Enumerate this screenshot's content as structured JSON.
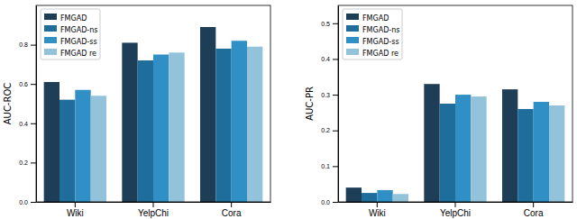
{
  "chart_data": [
    {
      "type": "bar",
      "y_label": "AUC-ROC",
      "categories": [
        "Wiki",
        "YelpChi",
        "Cora"
      ],
      "series": [
        {
          "name": "FMGAD",
          "color": "#1e3d57",
          "values": [
            0.61,
            0.81,
            0.89
          ]
        },
        {
          "name": "FMGAD-ns",
          "color": "#1f6d9a",
          "values": [
            0.52,
            0.72,
            0.78
          ]
        },
        {
          "name": "FMGAD-ss",
          "color": "#3090c6",
          "values": [
            0.57,
            0.75,
            0.82
          ]
        },
        {
          "name": "FMGAD re",
          "color": "#92c3da",
          "values": [
            0.54,
            0.76,
            0.79
          ]
        }
      ],
      "ylim": [
        0,
        1.0
      ],
      "yticks": [
        {
          "value": 0,
          "label": "0.0"
        },
        0.2,
        0.4,
        0.6,
        0.8
      ],
      "legend": "upper-left",
      "grid": false
    },
    {
      "type": "bar",
      "y_label": "AUC-PR",
      "categories": [
        "Wiki",
        "YelpChi",
        "Cora"
      ],
      "series": [
        {
          "name": "FMGAD",
          "color": "#1e3d57",
          "values": [
            0.04,
            0.33,
            0.315
          ]
        },
        {
          "name": "FMGAD-ns",
          "color": "#1f6d9a",
          "values": [
            0.025,
            0.275,
            0.26
          ]
        },
        {
          "name": "FMGAD-ss",
          "color": "#3090c6",
          "values": [
            0.033,
            0.3,
            0.28
          ]
        },
        {
          "name": "FMGAD re",
          "color": "#92c3da",
          "values": [
            0.022,
            0.295,
            0.27
          ]
        }
      ],
      "ylim": [
        0,
        0.55
      ],
      "yticks": [
        {
          "value": 0,
          "label": "0.0"
        },
        0.1,
        0.2,
        0.3,
        0.4,
        0.5
      ],
      "legend": "upper-left",
      "grid": false
    }
  ]
}
